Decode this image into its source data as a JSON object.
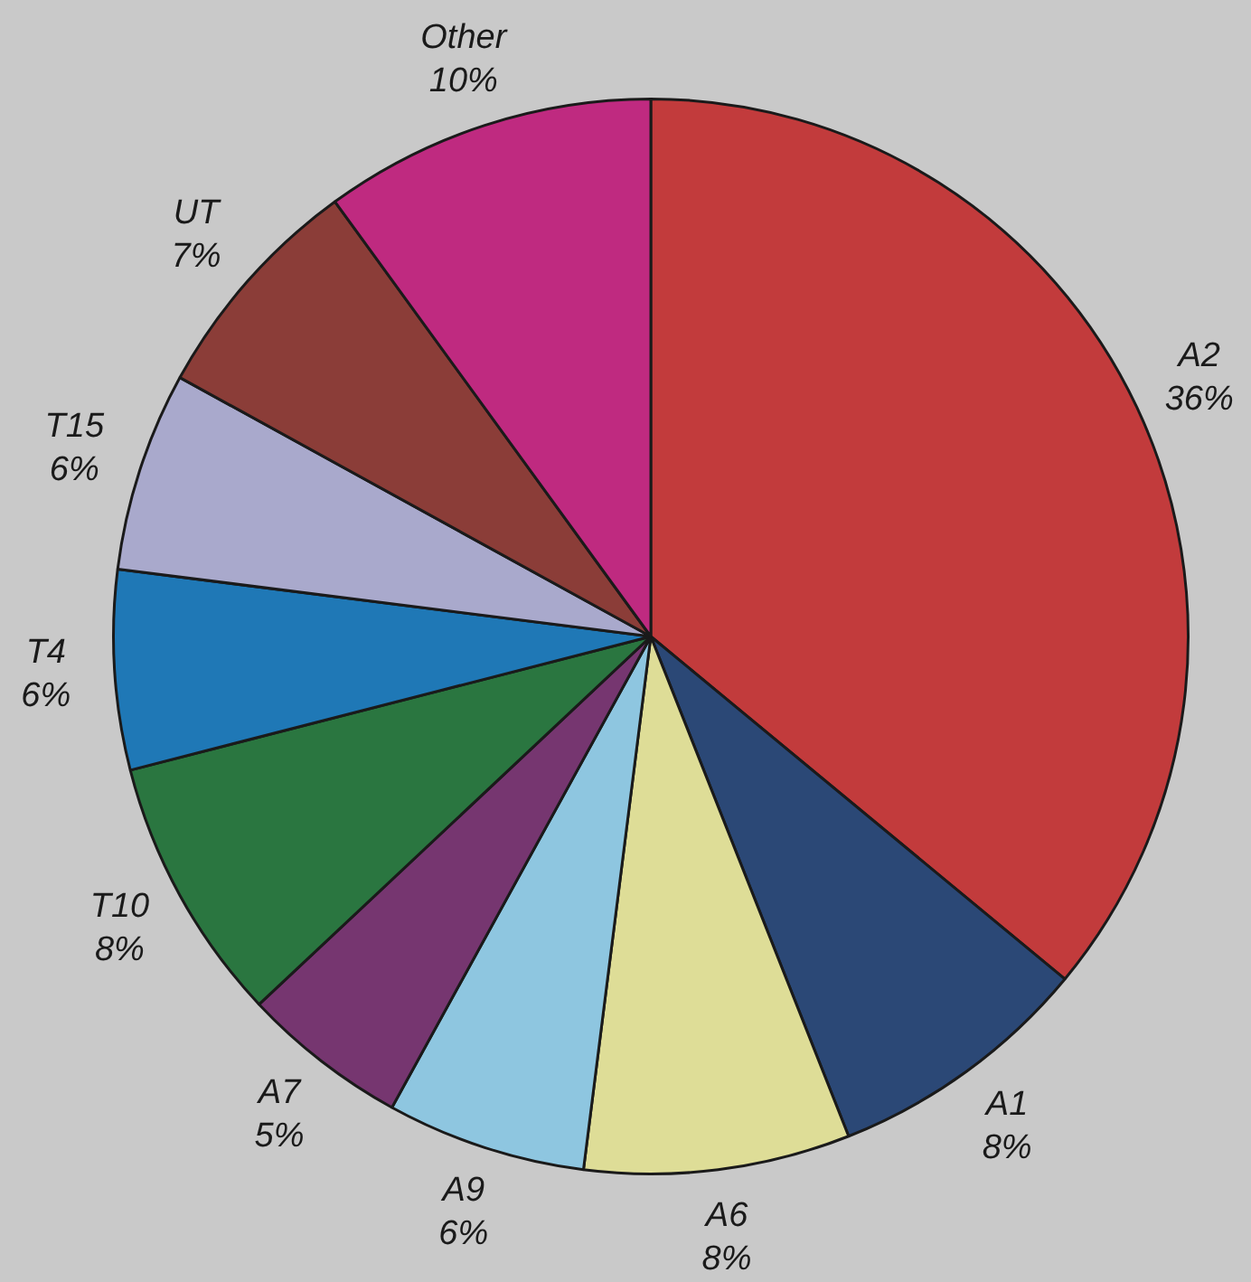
{
  "chart_data": {
    "type": "pie",
    "categories": [
      "A2",
      "A1",
      "A6",
      "A9",
      "A7",
      "T10",
      "T4",
      "T15",
      "UT",
      "Other"
    ],
    "values": [
      36,
      8,
      8,
      6,
      5,
      8,
      6,
      6,
      7,
      10
    ],
    "value_labels": [
      "36%",
      "8%",
      "8%",
      "6%",
      "5%",
      "8%",
      "6%",
      "6%",
      "7%",
      "10%"
    ],
    "colors": [
      "#c23b3c",
      "#2b4876",
      "#dedd97",
      "#8ec6e0",
      "#763670",
      "#2a7640",
      "#1f78b6",
      "#a9a9cc",
      "#8b3d38",
      "#bf2a80"
    ]
  }
}
